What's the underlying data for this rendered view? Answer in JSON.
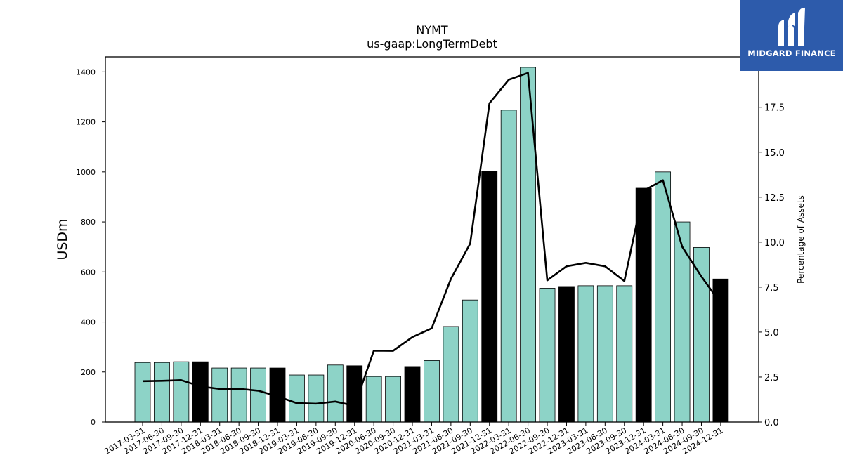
{
  "chart_data": {
    "type": "bar",
    "title": "NYMT",
    "subtitle": "us-gaap:LongTermDebt",
    "ylabel": "USDm",
    "y2label": "Percentage of Assets",
    "ylim": [
      0,
      1460
    ],
    "y2lim": [
      0,
      20.3
    ],
    "yticks": [
      0,
      200,
      400,
      600,
      800,
      1000,
      1200,
      1400
    ],
    "y2ticks": [
      "0.0",
      "2.5",
      "5.0",
      "7.5",
      "10.0",
      "12.5",
      "15.0",
      "17.5"
    ],
    "categories": [
      "2017-03-31",
      "2017-06-30",
      "2017-09-30",
      "2017-12-31",
      "2018-03-31",
      "2018-06-30",
      "2018-09-30",
      "2018-12-31",
      "2019-03-31",
      "2019-06-30",
      "2019-09-30",
      "2019-12-31",
      "2020-06-30",
      "2020-09-30",
      "2020-12-31",
      "2021-03-31",
      "2021-06-30",
      "2021-09-30",
      "2021-12-31",
      "2022-03-31",
      "2022-06-30",
      "2022-09-30",
      "2022-12-31",
      "2023-03-31",
      "2023-06-30",
      "2023-09-30",
      "2023-12-31",
      "2024-03-31",
      "2024-06-30",
      "2024-09-30",
      "2024-12-31"
    ],
    "series": [
      {
        "type": "bar",
        "values": [
          238,
          238,
          241,
          241,
          216,
          216,
          216,
          216,
          188,
          188,
          228,
          225,
          182,
          182,
          222,
          246,
          382,
          488,
          1003,
          1247,
          1418,
          535,
          542,
          545,
          545,
          545,
          935,
          1000,
          800,
          698,
          572
        ],
        "year_end_highlight": [
          false,
          false,
          false,
          true,
          false,
          false,
          false,
          true,
          false,
          false,
          false,
          true,
          false,
          false,
          true,
          false,
          false,
          false,
          true,
          false,
          false,
          false,
          true,
          false,
          false,
          false,
          true,
          false,
          false,
          false,
          true
        ]
      },
      {
        "type": "line",
        "axis": "right",
        "values": [
          2.27,
          2.29,
          2.33,
          1.98,
          1.84,
          1.85,
          1.74,
          1.43,
          1.05,
          1.02,
          1.14,
          0.9,
          3.97,
          3.96,
          4.72,
          5.21,
          7.96,
          9.92,
          17.72,
          19.03,
          19.41,
          7.88,
          8.66,
          8.85,
          8.66,
          7.84,
          12.86,
          13.44,
          9.75,
          8.09,
          6.6
        ]
      }
    ],
    "colors": {
      "bar": "#8dd3c7",
      "bar_year_end": "#000000",
      "line": "#000000",
      "edge": "#000000"
    }
  },
  "logo": {
    "text": "MIDGARD FINANCE",
    "color": "#2d5bab"
  }
}
